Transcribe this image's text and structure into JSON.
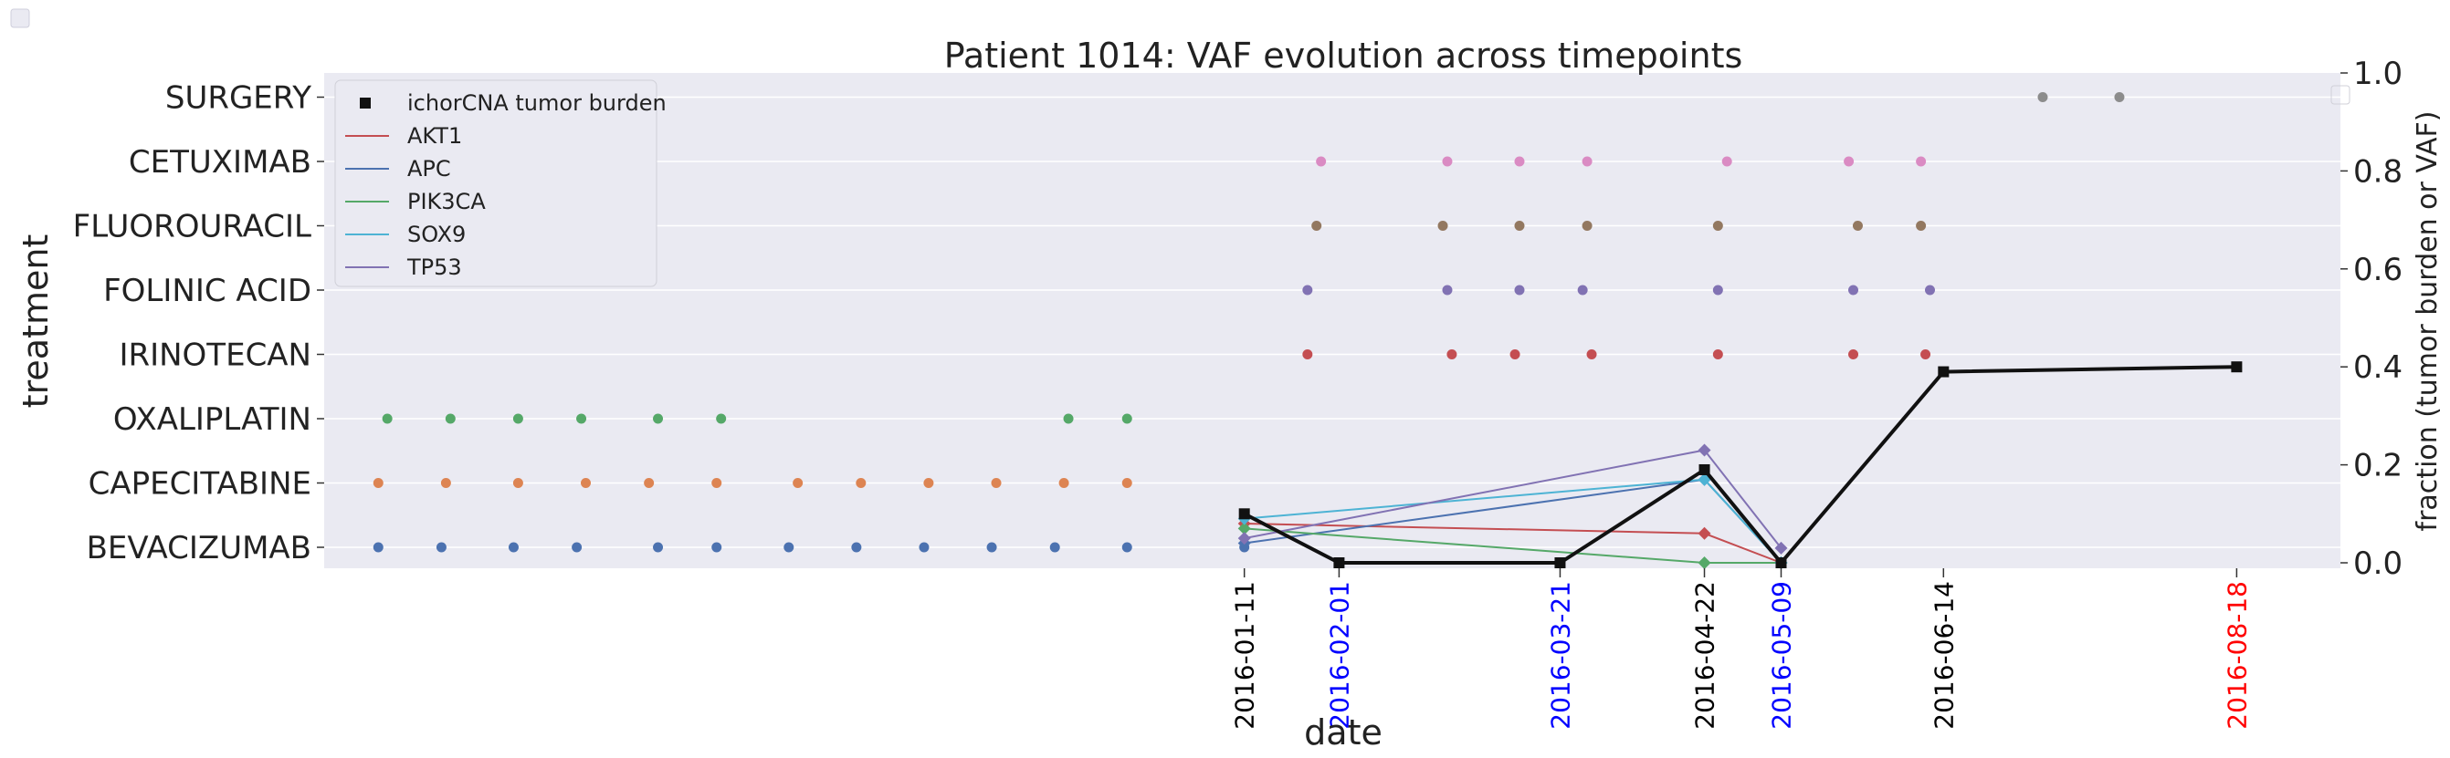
{
  "chart_data": {
    "type": "scatter",
    "title": "Patient 1014: VAF evolution across timepoints",
    "xlabel": "date",
    "ylabel": "treatment",
    "ylabel_right": "fraction (tumor burden or VAF)",
    "ylim_right": [
      0,
      1.0
    ],
    "right_ticks": [
      "0.0",
      "0.2",
      "0.4",
      "0.6",
      "0.8",
      "1.0"
    ],
    "grid": true,
    "legend_position": "upper left",
    "treatments": [
      "BEVACIZUMAB",
      "CAPECITABINE",
      "OXALIPLATIN",
      "IRINOTECAN",
      "FOLINIC ACID",
      "FLUOROURACIL",
      "CETUXIMAB",
      "SURGERY"
    ],
    "x_ticks": [
      {
        "date": "2016-01-11",
        "color": "#000000"
      },
      {
        "date": "2016-02-01",
        "color": "#0000ff"
      },
      {
        "date": "2016-03-21",
        "color": "#0000ff"
      },
      {
        "date": "2016-04-22",
        "color": "#000000"
      },
      {
        "date": "2016-05-09",
        "color": "#0000ff"
      },
      {
        "date": "2016-06-14",
        "color": "#000000"
      },
      {
        "date": "2016-08-18",
        "color": "#ff0000"
      }
    ],
    "treatment_events": [
      {
        "treatment": "BEVACIZUMAB",
        "color": "#4c72b0",
        "dates": [
          "2015-07-03",
          "2015-07-17",
          "2015-08-02",
          "2015-08-16",
          "2015-09-03",
          "2015-09-16",
          "2015-10-02",
          "2015-10-17",
          "2015-11-01",
          "2015-11-16",
          "2015-11-30",
          "2015-12-16",
          "2016-01-11"
        ]
      },
      {
        "treatment": "CAPECITABINE",
        "color": "#dd8452",
        "dates": [
          "2015-07-03",
          "2015-07-18",
          "2015-08-03",
          "2015-08-18",
          "2015-09-01",
          "2015-09-16",
          "2015-10-04",
          "2015-10-18",
          "2015-11-02",
          "2015-11-17",
          "2015-12-02",
          "2015-12-16"
        ]
      },
      {
        "treatment": "OXALIPLATIN",
        "color": "#55a868",
        "dates": [
          "2015-07-05",
          "2015-07-19",
          "2015-08-03",
          "2015-08-17",
          "2015-09-03",
          "2015-09-17",
          "2015-12-03",
          "2015-12-16"
        ]
      },
      {
        "treatment": "IRINOTECAN",
        "color": "#c44e52",
        "dates": [
          "2016-01-25",
          "2016-02-26",
          "2016-03-11",
          "2016-03-28",
          "2016-04-25",
          "2016-05-25",
          "2016-06-10"
        ]
      },
      {
        "treatment": "FOLINIC ACID",
        "color": "#8172b3",
        "dates": [
          "2016-01-25",
          "2016-02-25",
          "2016-03-12",
          "2016-03-26",
          "2016-04-25",
          "2016-05-25",
          "2016-06-11"
        ]
      },
      {
        "treatment": "FLUOROURACIL",
        "color": "#937860",
        "dates": [
          "2016-01-27",
          "2016-02-24",
          "2016-03-12",
          "2016-03-27",
          "2016-04-25",
          "2016-05-26",
          "2016-06-09"
        ]
      },
      {
        "treatment": "CETUXIMAB",
        "color": "#da8bc3",
        "dates": [
          "2016-01-28",
          "2016-02-25",
          "2016-03-12",
          "2016-03-27",
          "2016-04-27",
          "2016-05-24",
          "2016-06-09"
        ]
      },
      {
        "treatment": "SURGERY",
        "color": "#8c8c8c",
        "dates": [
          "2016-07-06",
          "2016-07-23"
        ]
      }
    ],
    "series": [
      {
        "name": "ichorCNA tumor burden",
        "color": "#111111",
        "marker": "square",
        "x": [
          "2016-01-11",
          "2016-02-01",
          "2016-03-21",
          "2016-04-22",
          "2016-05-09",
          "2016-06-14",
          "2016-08-18"
        ],
        "values": [
          0.1,
          0.0,
          0.0,
          0.19,
          0.0,
          0.39,
          0.4
        ]
      },
      {
        "name": "AKT1",
        "color": "#c44e52",
        "marker": "diamond",
        "x": [
          "2016-01-11",
          "2016-04-22",
          "2016-05-09"
        ],
        "values": [
          0.08,
          0.06,
          0.0
        ]
      },
      {
        "name": "APC",
        "color": "#4c72b0",
        "marker": "diamond",
        "x": [
          "2016-01-11",
          "2016-04-22",
          "2016-05-09"
        ],
        "values": [
          0.04,
          0.17,
          0.0
        ]
      },
      {
        "name": "PIK3CA",
        "color": "#55a868",
        "marker": "diamond",
        "x": [
          "2016-01-11",
          "2016-04-22",
          "2016-05-09"
        ],
        "values": [
          0.07,
          0.0,
          0.0
        ]
      },
      {
        "name": "SOX9",
        "color": "#4db3d4",
        "marker": "diamond",
        "x": [
          "2016-01-11",
          "2016-04-22",
          "2016-05-09"
        ],
        "values": [
          0.09,
          0.17,
          0.0
        ]
      },
      {
        "name": "TP53",
        "color": "#8172b3",
        "marker": "diamond",
        "x": [
          "2016-01-11",
          "2016-04-22",
          "2016-05-09"
        ],
        "values": [
          0.05,
          0.23,
          0.03
        ]
      }
    ]
  }
}
